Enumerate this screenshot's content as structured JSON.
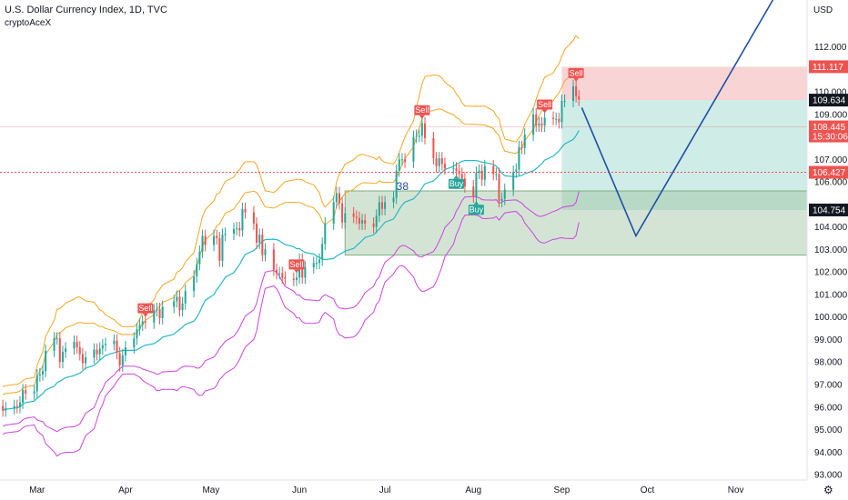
{
  "header": {
    "title": "U.S. Dollar Currency Index, 1D, TVC",
    "author": "cryptoAceX"
  },
  "colors": {
    "up": "#26a69a",
    "down": "#ef5350",
    "basis": "#26b8c8",
    "band1": "#f5a623",
    "band2": "#cc44dd",
    "arrow": "#1f4fa8",
    "stop": "#f7c5c5",
    "target": "#bfe6df",
    "support": "#9dc3a0",
    "lastPrice": "#ef5350"
  },
  "chart_data": {
    "type": "candlestick",
    "currency_label": "USD",
    "y_ticks": [
      "93.000",
      "94.000",
      "95.000",
      "96.000",
      "97.000",
      "98.000",
      "99.000",
      "100.000",
      "101.000",
      "102.000",
      "103.000",
      "104.000",
      "106.000",
      "107.000",
      "109.000",
      "110.000",
      "112.000"
    ],
    "x_ticks": [
      "Mar",
      "Apr",
      "May",
      "Jun",
      "Jul",
      "Aug",
      "Sep",
      "Oct",
      "Nov"
    ],
    "price_tags": [
      {
        "label": "111.117",
        "price": 111.117,
        "style": "down"
      },
      {
        "label": "109.634",
        "price": 109.634,
        "style": "neutral"
      },
      {
        "label": "108.445",
        "price": 108.445,
        "style": "down",
        "sub": "15:30:06"
      },
      {
        "label": "106.427",
        "price": 106.427,
        "style": "down"
      },
      {
        "label": "104.754",
        "price": 104.754,
        "style": "neutral"
      }
    ],
    "signals": [
      {
        "label": "Sell",
        "date": "2022-04-08",
        "type": "sell"
      },
      {
        "label": "Sell",
        "date": "2022-05-31",
        "type": "sell"
      },
      {
        "label": "Sell",
        "date": "2022-07-14",
        "type": "sell"
      },
      {
        "label": "Buy",
        "date": "2022-07-26",
        "type": "buy"
      },
      {
        "label": "Buy",
        "date": "2022-08-02",
        "type": "buy"
      },
      {
        "label": "Sell",
        "date": "2022-08-26",
        "type": "sell"
      },
      {
        "label": "Sell",
        "date": "2022-09-06",
        "type": "sell"
      }
    ],
    "annotation": {
      "text": "38",
      "date": "2022-07-05",
      "price": 106.0
    },
    "candle_dates": [
      "2022-02-17",
      "2022-02-18",
      "2022-02-21",
      "2022-02-22",
      "2022-02-23",
      "2022-02-24",
      "2022-02-25",
      "2022-02-28",
      "2022-03-01",
      "2022-03-02",
      "2022-03-03",
      "2022-03-04",
      "2022-03-07",
      "2022-03-08",
      "2022-03-09",
      "2022-03-10",
      "2022-03-11",
      "2022-03-14",
      "2022-03-15",
      "2022-03-16",
      "2022-03-17",
      "2022-03-18",
      "2022-03-21",
      "2022-03-22",
      "2022-03-23",
      "2022-03-24",
      "2022-03-25",
      "2022-03-28",
      "2022-03-29",
      "2022-03-30",
      "2022-03-31",
      "2022-04-01",
      "2022-04-04",
      "2022-04-05",
      "2022-04-06",
      "2022-04-07",
      "2022-04-08",
      "2022-04-11",
      "2022-04-12",
      "2022-04-13",
      "2022-04-14",
      "2022-04-18",
      "2022-04-19",
      "2022-04-20",
      "2022-04-21",
      "2022-04-22",
      "2022-04-25",
      "2022-04-26",
      "2022-04-27",
      "2022-04-28",
      "2022-04-29",
      "2022-05-02",
      "2022-05-03",
      "2022-05-04",
      "2022-05-05",
      "2022-05-06",
      "2022-05-09",
      "2022-05-10",
      "2022-05-11",
      "2022-05-12",
      "2022-05-13",
      "2022-05-16",
      "2022-05-17",
      "2022-05-18",
      "2022-05-19",
      "2022-05-20",
      "2022-05-23",
      "2022-05-24",
      "2022-05-25",
      "2022-05-26",
      "2022-05-27",
      "2022-05-30",
      "2022-05-31",
      "2022-06-01",
      "2022-06-02",
      "2022-06-03",
      "2022-06-06",
      "2022-06-07",
      "2022-06-08",
      "2022-06-09",
      "2022-06-10",
      "2022-06-13",
      "2022-06-14",
      "2022-06-15",
      "2022-06-16",
      "2022-06-17",
      "2022-06-20",
      "2022-06-21",
      "2022-06-22",
      "2022-06-23",
      "2022-06-24",
      "2022-06-27",
      "2022-06-28",
      "2022-06-29",
      "2022-06-30",
      "2022-07-01",
      "2022-07-04",
      "2022-07-05",
      "2022-07-06",
      "2022-07-07",
      "2022-07-08",
      "2022-07-11",
      "2022-07-12",
      "2022-07-13",
      "2022-07-14",
      "2022-07-15",
      "2022-07-18",
      "2022-07-19",
      "2022-07-20",
      "2022-07-21",
      "2022-07-22",
      "2022-07-25",
      "2022-07-26",
      "2022-07-27",
      "2022-07-28",
      "2022-07-29",
      "2022-08-01",
      "2022-08-02",
      "2022-08-03",
      "2022-08-04",
      "2022-08-05",
      "2022-08-08",
      "2022-08-09",
      "2022-08-10",
      "2022-08-11",
      "2022-08-12",
      "2022-08-15",
      "2022-08-16",
      "2022-08-17",
      "2022-08-18",
      "2022-08-19",
      "2022-08-22",
      "2022-08-23",
      "2022-08-24",
      "2022-08-25",
      "2022-08-26",
      "2022-08-29",
      "2022-08-30",
      "2022-08-31",
      "2022-09-01",
      "2022-09-02",
      "2022-09-05",
      "2022-09-06",
      "2022-09-07",
      "2022-09-08"
    ],
    "close": [
      95.85,
      95.95,
      96.05,
      96.0,
      96.2,
      96.75,
      96.6,
      96.7,
      97.4,
      97.45,
      97.6,
      98.5,
      99.05,
      99.05,
      98.0,
      98.45,
      98.6,
      98.9,
      98.65,
      98.35,
      97.95,
      98.2,
      98.55,
      98.35,
      98.6,
      98.75,
      98.8,
      98.95,
      98.4,
      97.85,
      98.3,
      98.65,
      99.05,
      99.45,
      99.65,
      99.8,
      99.75,
      100.3,
      100.35,
      99.95,
      100.45,
      100.7,
      100.9,
      100.3,
      100.6,
      101.15,
      101.8,
      102.35,
      102.9,
      103.6,
      103.2,
      103.6,
      103.5,
      102.5,
      103.65,
      103.7,
      103.9,
      103.95,
      103.85,
      104.8,
      104.65,
      104.15,
      103.3,
      103.65,
      102.75,
      103.0,
      102.1,
      101.95,
      101.95,
      101.75,
      101.7,
      101.65,
      101.75,
      102.55,
      101.75,
      102.2,
      102.4,
      102.4,
      102.55,
      103.25,
      104.15,
      105.1,
      105.5,
      105.05,
      104.2,
      104.6,
      104.45,
      104.4,
      104.15,
      104.3,
      104.15,
      104.0,
      104.5,
      105.1,
      104.8,
      105.1,
      105.3,
      106.5,
      107.0,
      107.0,
      106.9,
      108.0,
      108.05,
      108.05,
      108.6,
      107.95,
      107.05,
      106.7,
      107.05,
      106.8,
      106.6,
      106.6,
      106.5,
      106.35,
      106.15,
      105.8,
      105.35,
      106.4,
      106.5,
      106.1,
      106.7,
      106.35,
      106.35,
      105.15,
      105.25,
      105.65,
      106.45,
      106.55,
      107.55,
      107.5,
      108.1,
      109.0,
      108.5,
      108.6,
      108.5,
      108.85,
      108.8,
      108.8,
      108.65,
      109.6,
      109.6,
      110.25,
      109.8,
      109.65
    ],
    "open": [
      96.05,
      95.85,
      95.95,
      96.05,
      96.0,
      96.2,
      96.75,
      96.6,
      96.7,
      97.4,
      97.45,
      97.6,
      98.5,
      99.05,
      99.05,
      98.0,
      98.45,
      98.6,
      98.9,
      98.65,
      98.35,
      97.95,
      98.2,
      98.55,
      98.35,
      98.6,
      98.75,
      98.8,
      98.95,
      98.4,
      97.85,
      98.3,
      98.65,
      99.05,
      99.45,
      99.65,
      99.8,
      99.75,
      100.3,
      100.35,
      99.95,
      100.45,
      100.7,
      100.9,
      100.3,
      100.6,
      101.15,
      101.8,
      102.35,
      102.9,
      103.6,
      103.2,
      103.6,
      103.5,
      102.5,
      103.65,
      103.7,
      103.9,
      103.95,
      103.85,
      104.8,
      104.65,
      104.15,
      103.3,
      103.65,
      102.75,
      103.0,
      102.1,
      101.95,
      101.95,
      101.75,
      101.7,
      101.65,
      101.75,
      102.55,
      101.75,
      102.2,
      102.4,
      102.4,
      102.55,
      103.25,
      104.15,
      105.1,
      105.5,
      105.05,
      104.2,
      104.6,
      104.45,
      104.4,
      104.15,
      104.3,
      104.15,
      104.0,
      104.5,
      105.1,
      104.8,
      105.1,
      105.3,
      106.5,
      107.0,
      107.0,
      106.9,
      108.0,
      108.05,
      108.05,
      108.6,
      107.95,
      107.05,
      106.7,
      107.05,
      106.8,
      106.6,
      106.6,
      106.5,
      106.35,
      106.15,
      105.8,
      105.35,
      106.4,
      106.5,
      106.1,
      106.7,
      106.35,
      106.35,
      105.15,
      105.25,
      105.65,
      106.45,
      106.55,
      107.55,
      107.5,
      108.1,
      109.0,
      108.5,
      108.6,
      108.5,
      108.85,
      108.8,
      108.8,
      108.65,
      109.6,
      109.6,
      110.25,
      109.8
    ],
    "price_range": [
      92.76,
      114.08
    ],
    "date_range": [
      "2022-02-16",
      "2022-11-26"
    ],
    "rectangles": [
      {
        "name": "stop-zone",
        "from": "2022-09-01",
        "to": "2022-11-30",
        "top": 111.117,
        "bottom": 109.634
      },
      {
        "name": "target-zone",
        "from": "2022-09-01",
        "to": "2022-11-30",
        "top": 109.634,
        "bottom": 104.754
      },
      {
        "name": "support-zone",
        "from": "2022-06-17",
        "to": "2022-11-30",
        "top": 105.6,
        "bottom": 102.75
      }
    ],
    "projection": [
      {
        "date": "2022-09-08",
        "price": 109.3
      },
      {
        "date": "2022-09-27",
        "price": 103.6
      },
      {
        "date": "2022-11-14",
        "price": 114.08
      }
    ],
    "reference_lines": [
      {
        "price": 106.427,
        "style": "dotted"
      },
      {
        "price": 108.445,
        "style": "faint"
      }
    ]
  }
}
